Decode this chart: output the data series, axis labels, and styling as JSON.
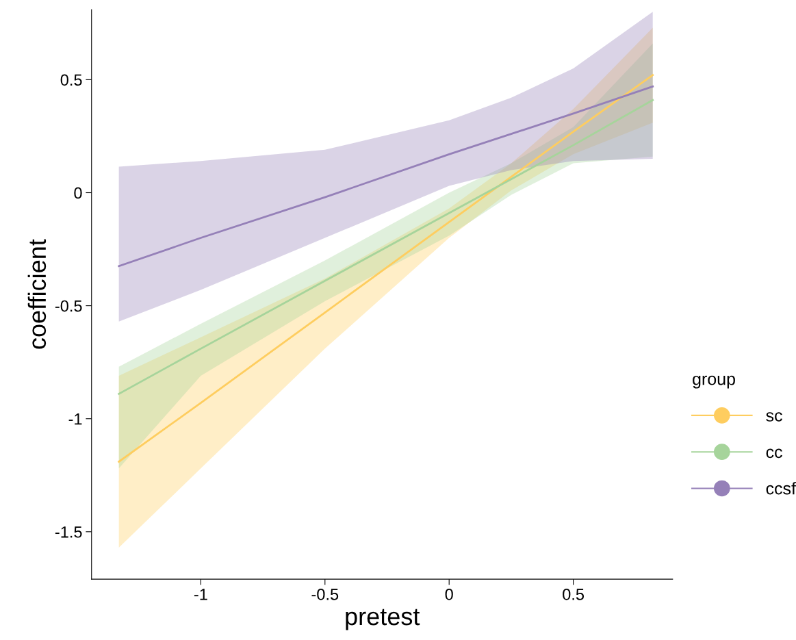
{
  "chart_data": {
    "type": "line",
    "xlabel": "pretest",
    "ylabel": "coefficient",
    "legend_title": "group",
    "legend": "right",
    "x": [
      -1.33,
      -1,
      -0.5,
      0,
      0.25,
      0.5,
      0.82
    ],
    "xlim": [
      -1.44,
      0.9
    ],
    "xticks": [
      -1,
      -0.5,
      0,
      0.5
    ],
    "ylim": [
      -1.71,
      0.81
    ],
    "yticks": [
      -1.5,
      -1,
      -0.5,
      0,
      0.5
    ],
    "grid": false,
    "series": [
      {
        "name": "sc",
        "color": "#fecd5f",
        "values": [
          -1.19,
          -0.93,
          -0.53,
          -0.13,
          0.07,
          0.27,
          0.52
        ],
        "lower": [
          -1.57,
          -1.22,
          -0.69,
          -0.2,
          0.01,
          0.17,
          0.31
        ],
        "upper": [
          -0.81,
          -0.64,
          -0.38,
          -0.07,
          0.13,
          0.37,
          0.73
        ]
      },
      {
        "name": "cc",
        "color": "#a6d49b",
        "values": [
          -0.89,
          -0.69,
          -0.39,
          -0.09,
          0.06,
          0.21,
          0.41
        ],
        "lower": [
          -1.22,
          -0.81,
          -0.48,
          -0.19,
          -0.01,
          0.13,
          0.16
        ],
        "upper": [
          -0.77,
          -0.58,
          -0.3,
          0.0,
          0.13,
          0.29,
          0.66
        ]
      },
      {
        "name": "ccsf",
        "color": "#9580b8",
        "values": [
          -0.325,
          -0.2,
          -0.02,
          0.17,
          0.26,
          0.35,
          0.47
        ],
        "lower": [
          -0.57,
          -0.43,
          -0.2,
          0.03,
          0.1,
          0.14,
          0.15
        ],
        "upper": [
          0.115,
          0.14,
          0.19,
          0.32,
          0.42,
          0.55,
          0.8
        ]
      }
    ]
  }
}
